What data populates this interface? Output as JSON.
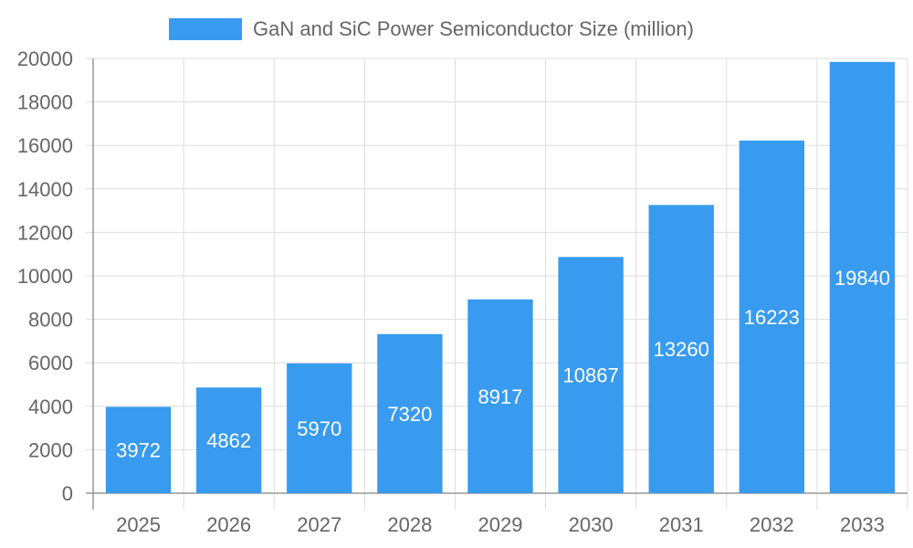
{
  "colors": {
    "bar": "#389bef",
    "grid": "#dddddd",
    "axis": "#999999",
    "tick_text": "#666666",
    "data_label": "#ffffff"
  },
  "chart_data": {
    "type": "bar",
    "categories": [
      "2025",
      "2026",
      "2027",
      "2028",
      "2029",
      "2030",
      "2031",
      "2032",
      "2033"
    ],
    "series": [
      {
        "name": "GaN and SiC Power Semiconductor Size (million)",
        "values": [
          3972,
          4862,
          5970,
          7320,
          8917,
          10867,
          13260,
          16223,
          19840
        ]
      }
    ],
    "ylim": [
      0,
      20000
    ],
    "yticks": [
      "0",
      "2000",
      "4000",
      "6000",
      "8000",
      "10000",
      "12000",
      "14000",
      "16000",
      "18000",
      "20000"
    ],
    "data_labels": [
      "3972",
      "4862",
      "5970",
      "7320",
      "8917",
      "10867",
      "13260",
      "16223",
      "19840"
    ],
    "grid": true,
    "legend": "top"
  }
}
